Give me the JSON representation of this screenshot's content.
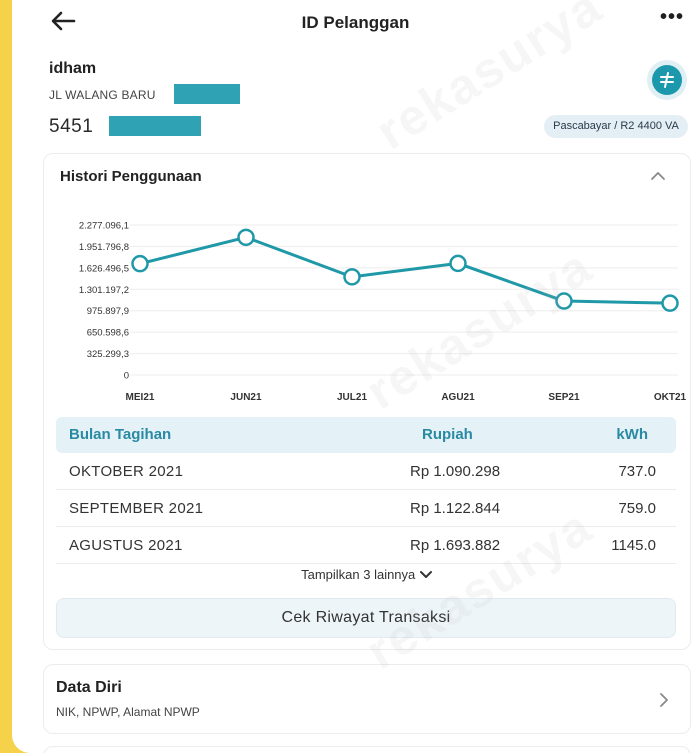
{
  "header": {
    "title": "ID Pelanggan",
    "more_label": "•••"
  },
  "customer": {
    "name": "idham",
    "address": "JL WALANG BARU",
    "id_prefix": "5451",
    "tariff": "Pascabayar / R2 4400 VA"
  },
  "history": {
    "title": "Histori Penggunaan",
    "table": {
      "headers": [
        "Bulan Tagihan",
        "Rupiah",
        "kWh"
      ],
      "rows": [
        {
          "month": "OKTOBER 2021",
          "amount": "Rp 1.090.298",
          "kwh": "737.0"
        },
        {
          "month": "SEPTEMBER 2021",
          "amount": "Rp 1.122.844",
          "kwh": "759.0"
        },
        {
          "month": "AGUSTUS 2021",
          "amount": "Rp 1.693.882",
          "kwh": "1145.0"
        }
      ]
    },
    "show_more": "Tampilkan 3 lainnya",
    "transactions_button": "Cek Riwayat Transaksi"
  },
  "personal": {
    "title": "Data Diri",
    "subtitle": "NIK, NPWP, Alamat NPWP"
  },
  "watermark": "rekasurya",
  "colors": {
    "accent": "#2a8aa3",
    "line": "#1f98a8",
    "frame": "#f5d24a"
  },
  "chart_data": {
    "type": "line",
    "categories": [
      "MEI21",
      "JUN21",
      "JUL21",
      "AGU21",
      "SEP21",
      "OKT21"
    ],
    "series": [
      {
        "values": [
          1690000,
          2090000,
          1490000,
          1693882,
          1122844,
          1090298
        ]
      }
    ],
    "y_ticks": [
      "2.277.096,1",
      "1.951.796,8",
      "1.626.496,5",
      "1.301.197,2",
      "975.897,9",
      "650.598,6",
      "325.299,3",
      "0"
    ],
    "ylim": [
      0,
      2277096.1
    ],
    "grid": true
  }
}
